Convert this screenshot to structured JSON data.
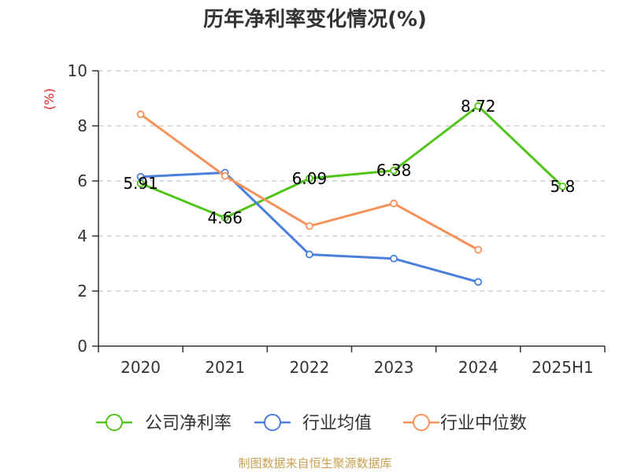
{
  "chart_data": {
    "type": "line",
    "title": "历年净利率变化情况(%)",
    "ylabel": "(%)",
    "ylim": [
      0,
      10
    ],
    "yticks": [
      0,
      2,
      4,
      6,
      8,
      10
    ],
    "grid": true,
    "legend_position": "bottom",
    "categories": [
      "2020",
      "2021",
      "2022",
      "2023",
      "2024",
      "2025H1"
    ],
    "series": [
      {
        "name": "公司净利率",
        "color": "#52c41a",
        "values": [
          5.91,
          4.66,
          6.09,
          6.38,
          8.72,
          5.8
        ],
        "labels": [
          "5.91",
          "4.66",
          "6.09",
          "6.38",
          "8.72",
          "5.8"
        ]
      },
      {
        "name": "行业均值",
        "color": "#4a7fdc",
        "values": [
          6.15,
          6.3,
          3.33,
          3.18,
          2.33,
          null
        ]
      },
      {
        "name": "行业中位数",
        "color": "#f5925a",
        "values": [
          8.42,
          6.18,
          4.36,
          5.18,
          3.5,
          null
        ]
      }
    ]
  },
  "source_note": "制图数据来自恒生聚源数据库"
}
